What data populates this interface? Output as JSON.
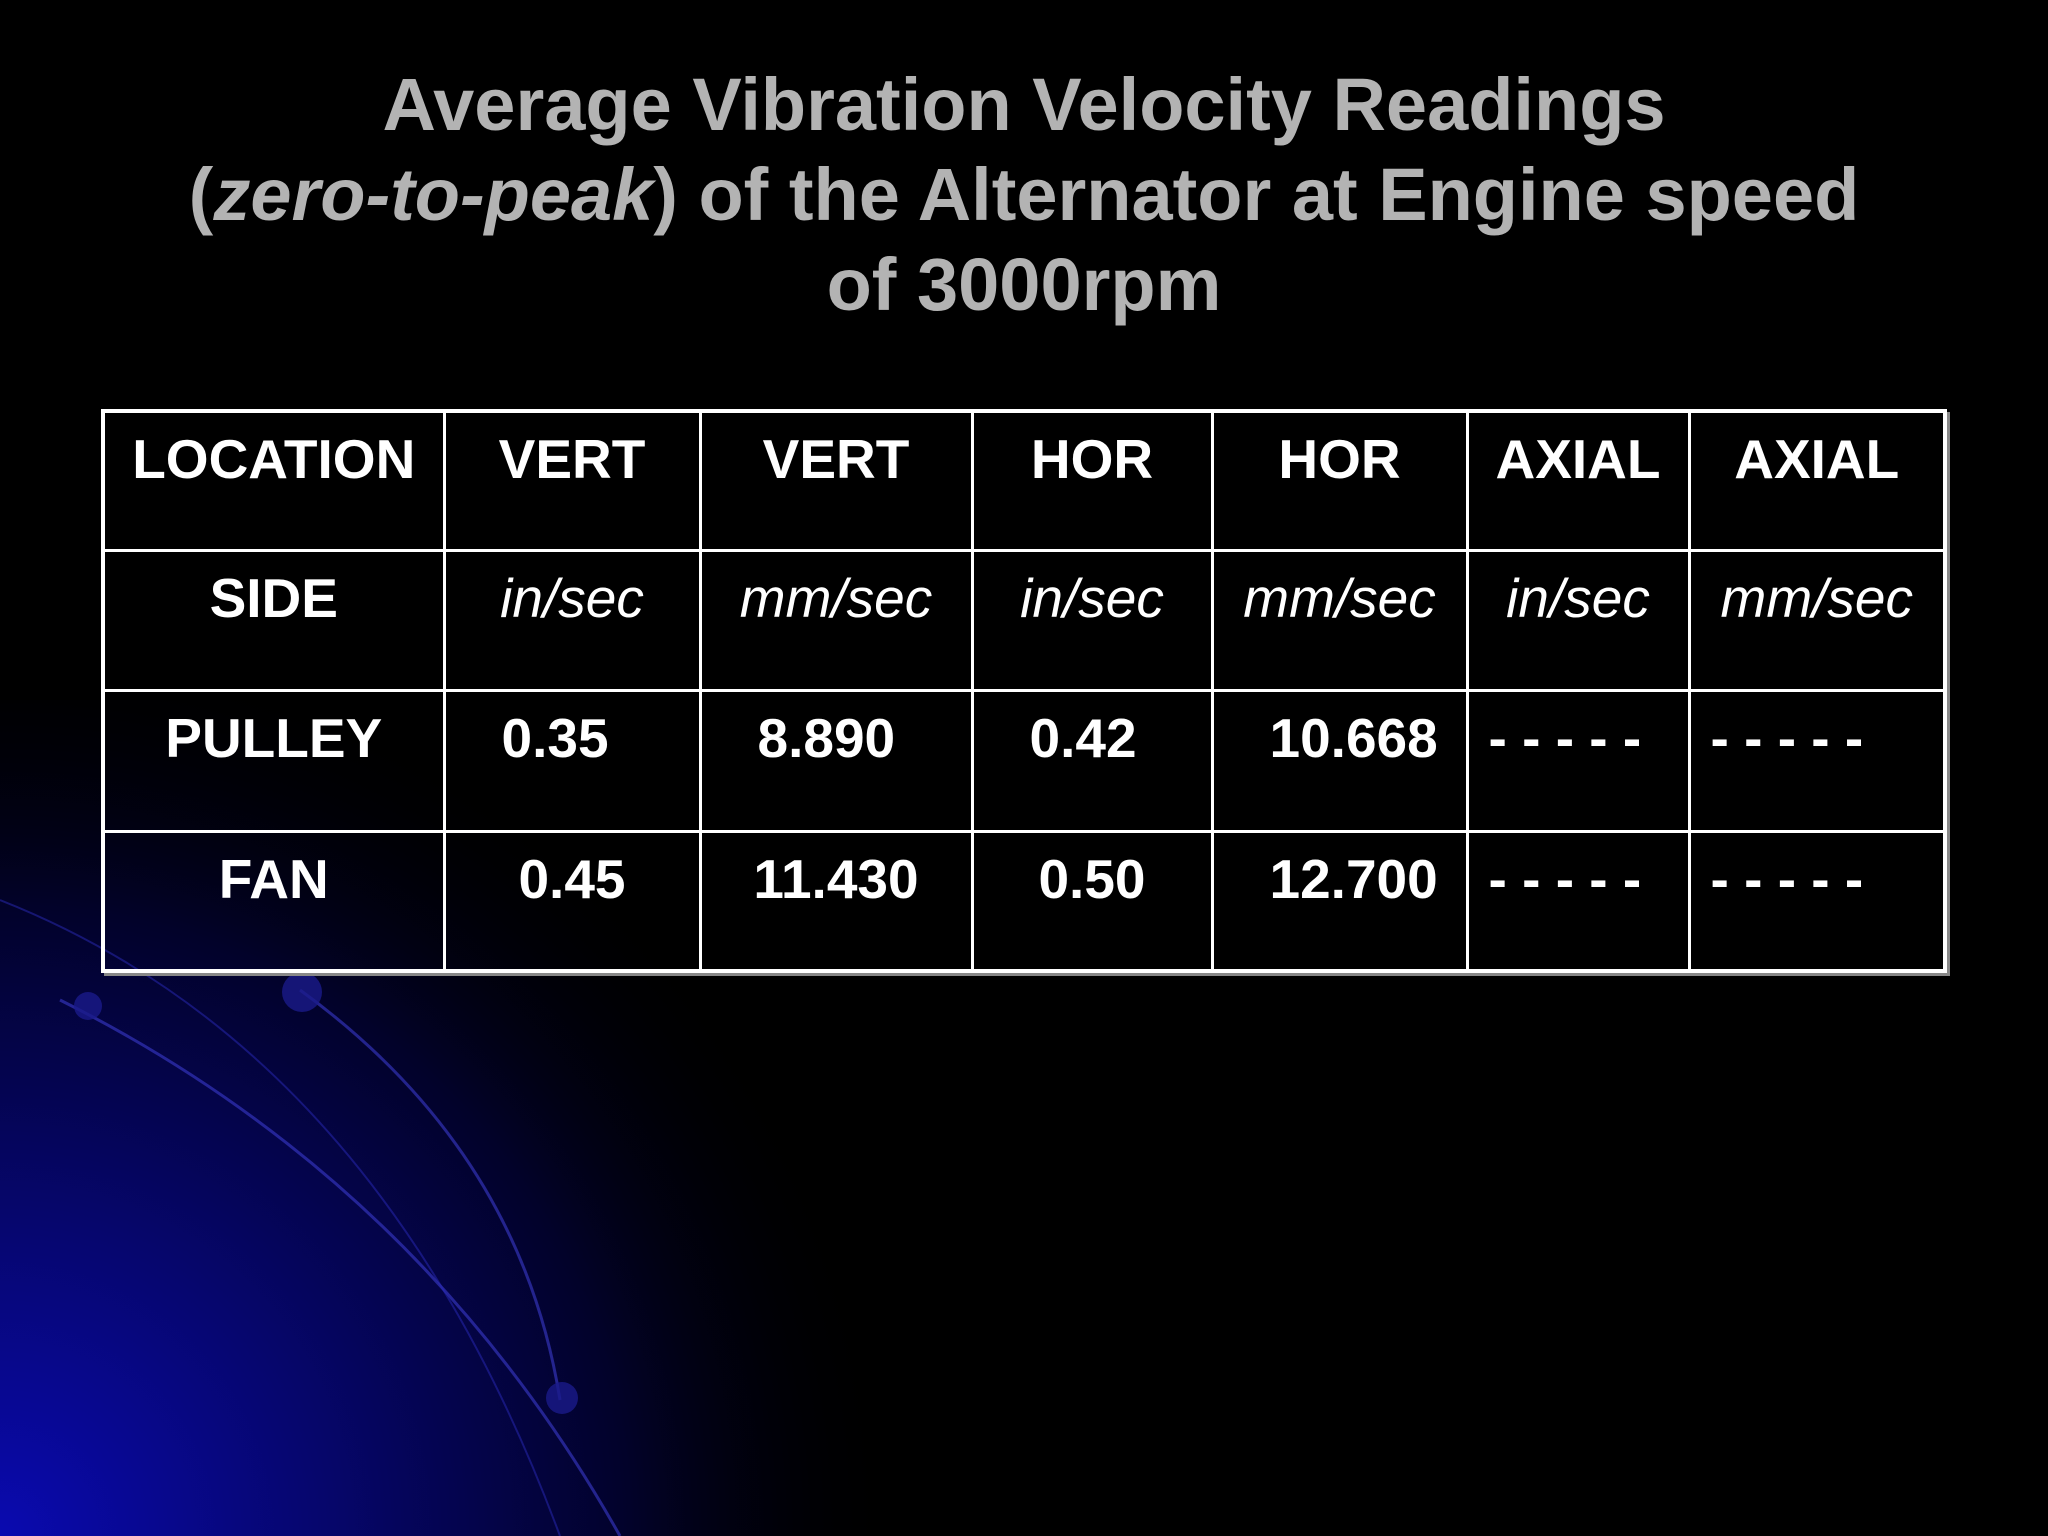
{
  "title": {
    "line1": "Average Vibration Velocity Readings",
    "line2_open": "(",
    "line2_italic": "zero-to-peak",
    "line2_rest": ") of the Alternator at Engine speed",
    "line3": "of 3000rpm"
  },
  "table": {
    "header": [
      "LOCATION",
      "VERT",
      "VERT",
      "HOR",
      "HOR",
      "AXIAL",
      "AXIAL"
    ],
    "units": [
      "SIDE",
      "in/sec",
      "mm/sec",
      "in/sec",
      "mm/sec",
      "in/sec",
      "mm/sec"
    ],
    "rows": [
      [
        "PULLEY",
        "0.35",
        "8.890",
        "0.42",
        "10.668",
        "- - - - -",
        "- - - - -"
      ],
      [
        "FAN",
        "0.45",
        "11.430",
        "0.50",
        "12.700",
        "- - - - -",
        "- - - - -"
      ]
    ]
  },
  "colors": {
    "background": "#000000",
    "title": "#b3b3b3",
    "table_text": "#ffffff",
    "accent_glow": "#0a0aa8"
  }
}
